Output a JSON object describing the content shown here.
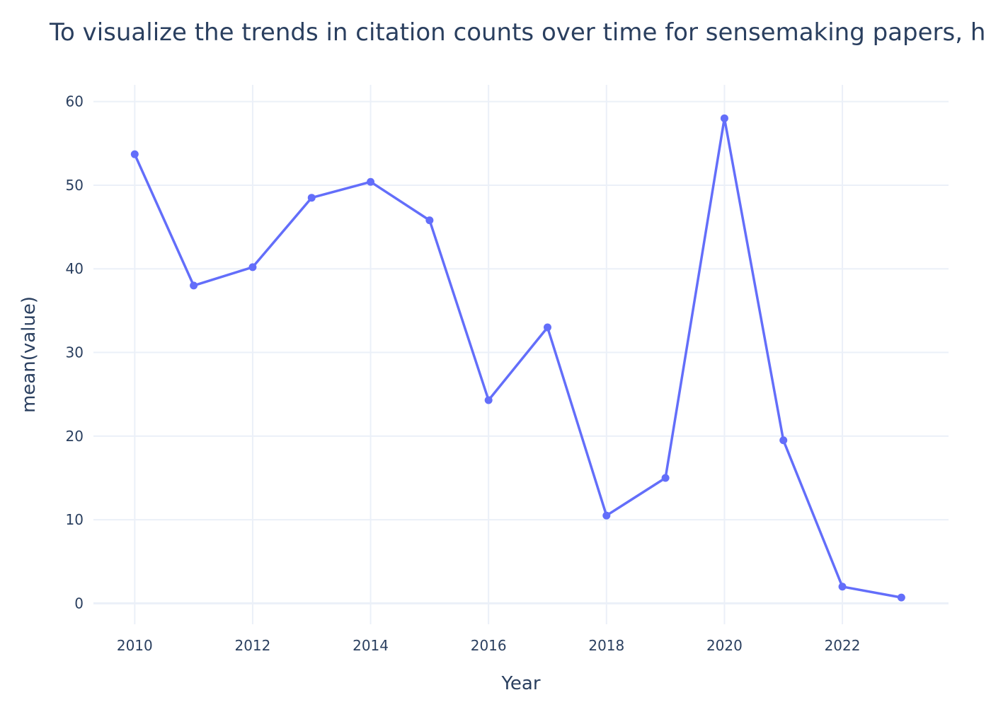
{
  "chart_data": {
    "type": "line",
    "title": "To visualize the trends in citation counts over time for sensemaking papers, h",
    "xlabel": "Year",
    "ylabel": "mean(value)",
    "x": [
      2010,
      2011,
      2012,
      2013,
      2014,
      2015,
      2016,
      2017,
      2018,
      2019,
      2020,
      2021,
      2022,
      2023
    ],
    "series": [
      {
        "values": [
          53.7,
          38.0,
          40.2,
          48.5,
          50.4,
          45.8,
          24.3,
          33.0,
          10.5,
          15.0,
          58.0,
          19.5,
          2.0,
          0.7
        ]
      }
    ],
    "xlim": [
      2009.3,
      2023.8
    ],
    "ylim": [
      -2.5,
      62
    ],
    "x_ticks": [
      "2010",
      "2012",
      "2014",
      "2016",
      "2018",
      "2020",
      "2022"
    ],
    "y_ticks": [
      "0",
      "10",
      "20",
      "30",
      "40",
      "50",
      "60"
    ],
    "grid": true,
    "line_color": "#636efa",
    "grid_color": "#ebf0f8"
  }
}
